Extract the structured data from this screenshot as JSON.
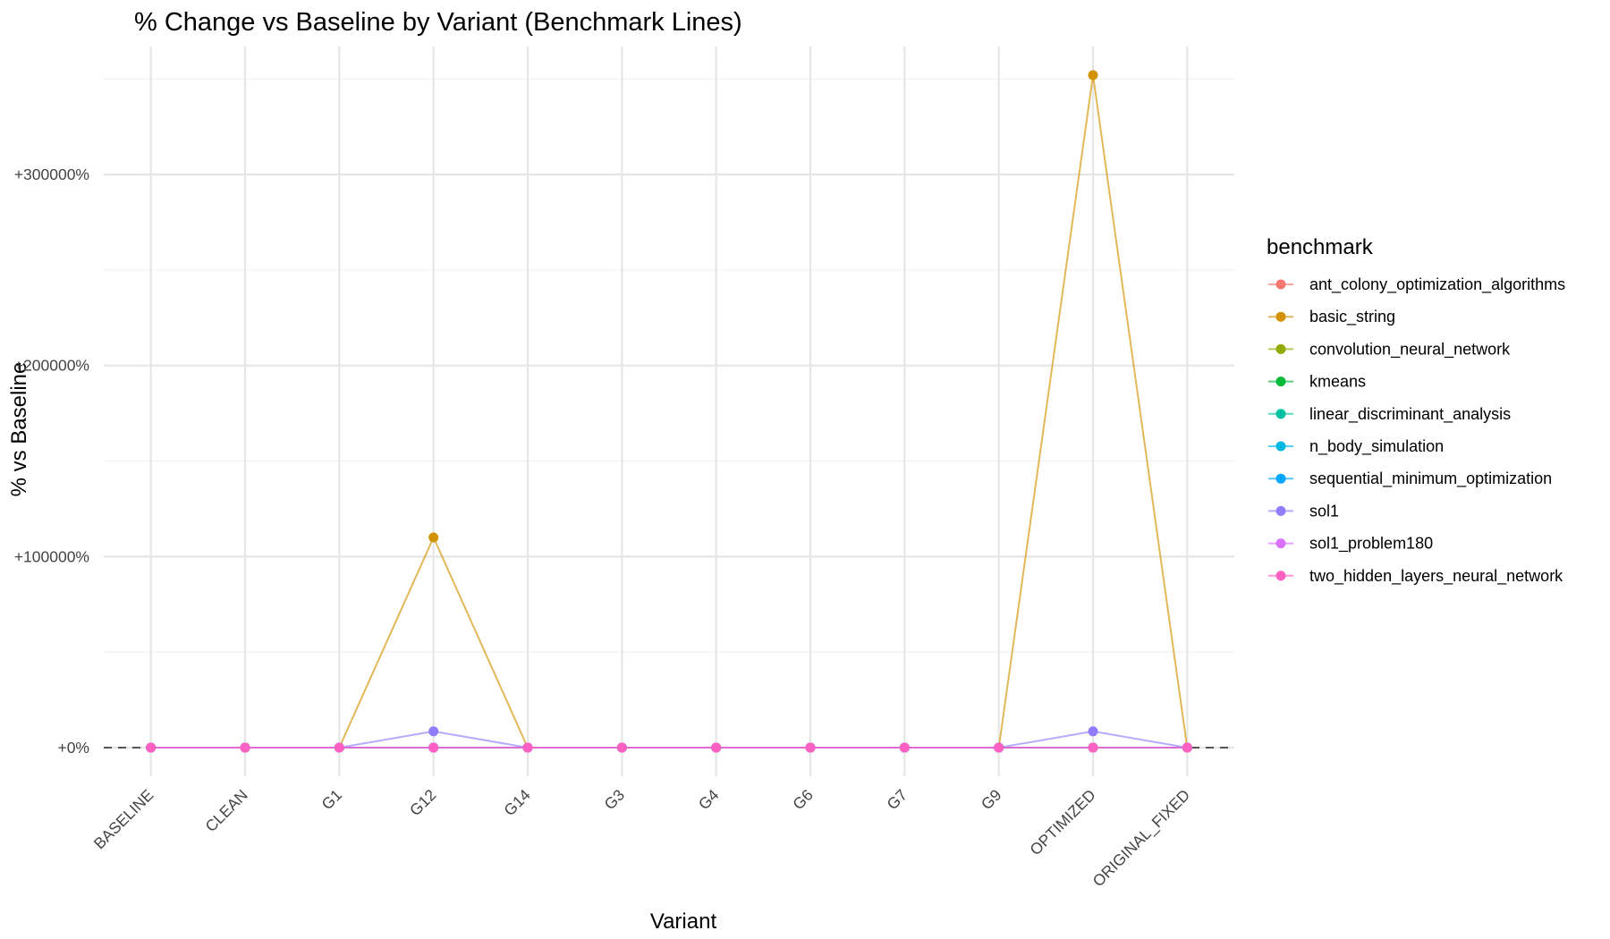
{
  "chart_data": {
    "type": "line",
    "title": "% Change vs Baseline by Variant (Benchmark Lines)",
    "xlabel": "Variant",
    "ylabel": "% vs Baseline",
    "categories": [
      "BASELINE",
      "CLEAN",
      "G1",
      "G12",
      "G14",
      "G3",
      "G4",
      "G6",
      "G7",
      "G9",
      "OPTIMIZED",
      "ORIGINAL_FIXED"
    ],
    "ylim": [
      -15000,
      367000
    ],
    "yticks": [
      0,
      100000,
      200000,
      300000
    ],
    "ytick_labels": [
      "+0%",
      "+100000%",
      "+200000%",
      "+300000%"
    ],
    "baseline_reference": 0,
    "legend": {
      "title": "benchmark",
      "position": "right"
    },
    "grid": true,
    "series": [
      {
        "name": "ant_colony_optimization_algorithms",
        "color": "#F8766D",
        "values": [
          0,
          0,
          0,
          0,
          0,
          0,
          0,
          0,
          0,
          0,
          0,
          0
        ]
      },
      {
        "name": "basic_string",
        "color": "#D39200",
        "values": [
          0,
          0,
          0,
          110000,
          0,
          0,
          0,
          0,
          0,
          0,
          352000,
          0
        ]
      },
      {
        "name": "convolution_neural_network",
        "color": "#93AA00",
        "values": [
          0,
          0,
          0,
          0,
          0,
          0,
          0,
          0,
          0,
          0,
          0,
          0
        ]
      },
      {
        "name": "kmeans",
        "color": "#00BA38",
        "values": [
          0,
          0,
          0,
          0,
          0,
          0,
          0,
          0,
          0,
          0,
          0,
          0
        ]
      },
      {
        "name": "linear_discriminant_analysis",
        "color": "#00C19F",
        "values": [
          0,
          0,
          0,
          0,
          0,
          0,
          0,
          0,
          0,
          0,
          0,
          0
        ]
      },
      {
        "name": "n_body_simulation",
        "color": "#00B9E3",
        "values": [
          0,
          0,
          0,
          0,
          0,
          0,
          0,
          0,
          0,
          0,
          0,
          0
        ]
      },
      {
        "name": "sequential_minimum_optimization",
        "color": "#00A5FF",
        "values": [
          0,
          0,
          0,
          0,
          0,
          0,
          0,
          0,
          0,
          0,
          0,
          0
        ]
      },
      {
        "name": "sol1",
        "color": "#8F7CFF",
        "values": [
          0,
          0,
          0,
          8500,
          0,
          0,
          0,
          0,
          0,
          0,
          8500,
          0
        ]
      },
      {
        "name": "sol1_problem180",
        "color": "#DB72FB",
        "values": [
          0,
          0,
          0,
          0,
          0,
          0,
          0,
          0,
          0,
          0,
          0,
          0
        ]
      },
      {
        "name": "two_hidden_layers_neural_network",
        "color": "#FF61C3",
        "values": [
          0,
          0,
          0,
          0,
          0,
          0,
          0,
          0,
          0,
          0,
          0,
          0
        ]
      }
    ]
  }
}
